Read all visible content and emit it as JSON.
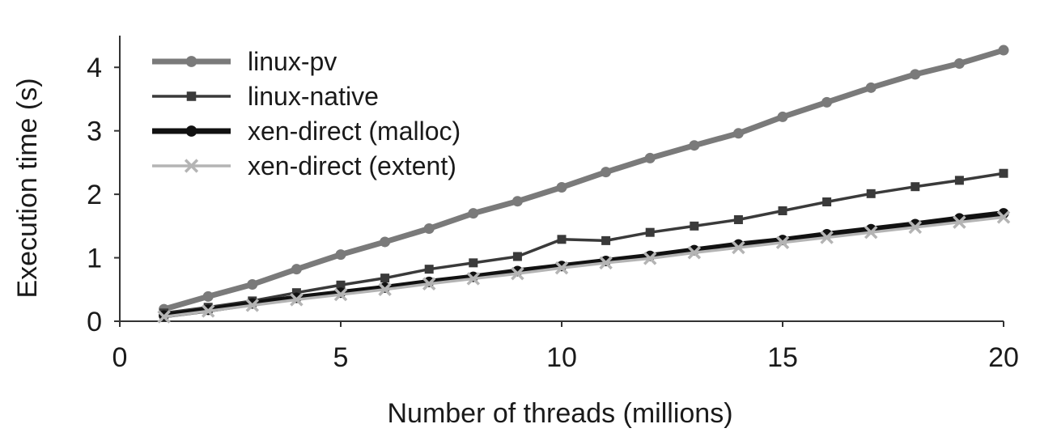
{
  "chart_data": {
    "type": "line",
    "title": "",
    "xlabel": "Number of threads (millions)",
    "ylabel": "Execution time (s)",
    "xlim": [
      0,
      20
    ],
    "ylim": [
      0,
      4.5
    ],
    "xticks": [
      0,
      5,
      10,
      15,
      20
    ],
    "yticks": [
      0,
      1,
      2,
      3,
      4
    ],
    "grid": false,
    "legend_position": "top-left",
    "x": [
      1,
      2,
      3,
      4,
      5,
      6,
      7,
      8,
      9,
      10,
      11,
      12,
      13,
      14,
      15,
      16,
      17,
      18,
      19,
      20
    ],
    "series": [
      {
        "name": "linux-pv",
        "color": "#7a7a7a",
        "marker": "circle",
        "line_style": "thick",
        "values": [
          0.19,
          0.39,
          0.58,
          0.82,
          1.05,
          1.25,
          1.46,
          1.7,
          1.89,
          2.11,
          2.35,
          2.57,
          2.77,
          2.96,
          3.22,
          3.45,
          3.68,
          3.89,
          4.06,
          4.27
        ]
      },
      {
        "name": "linux-native",
        "color": "#3a3a3a",
        "marker": "square",
        "line_style": "medium",
        "values": [
          0.13,
          0.22,
          0.32,
          0.45,
          0.57,
          0.68,
          0.82,
          0.92,
          1.02,
          1.29,
          1.27,
          1.4,
          1.5,
          1.6,
          1.74,
          1.88,
          2.01,
          2.12,
          2.22,
          2.33
        ]
      },
      {
        "name": "xen-direct (malloc)",
        "color": "#111111",
        "marker": "circle",
        "line_style": "thick",
        "values": [
          0.09,
          0.18,
          0.28,
          0.37,
          0.45,
          0.53,
          0.62,
          0.7,
          0.79,
          0.87,
          0.95,
          1.03,
          1.12,
          1.21,
          1.28,
          1.37,
          1.45,
          1.53,
          1.62,
          1.7
        ]
      },
      {
        "name": "xen-direct (extent)",
        "color": "#b4b4b4",
        "marker": "x",
        "line_style": "medium",
        "values": [
          0.07,
          0.16,
          0.25,
          0.34,
          0.42,
          0.5,
          0.59,
          0.67,
          0.75,
          0.84,
          0.92,
          0.99,
          1.08,
          1.16,
          1.24,
          1.32,
          1.4,
          1.48,
          1.56,
          1.64
        ]
      }
    ]
  }
}
